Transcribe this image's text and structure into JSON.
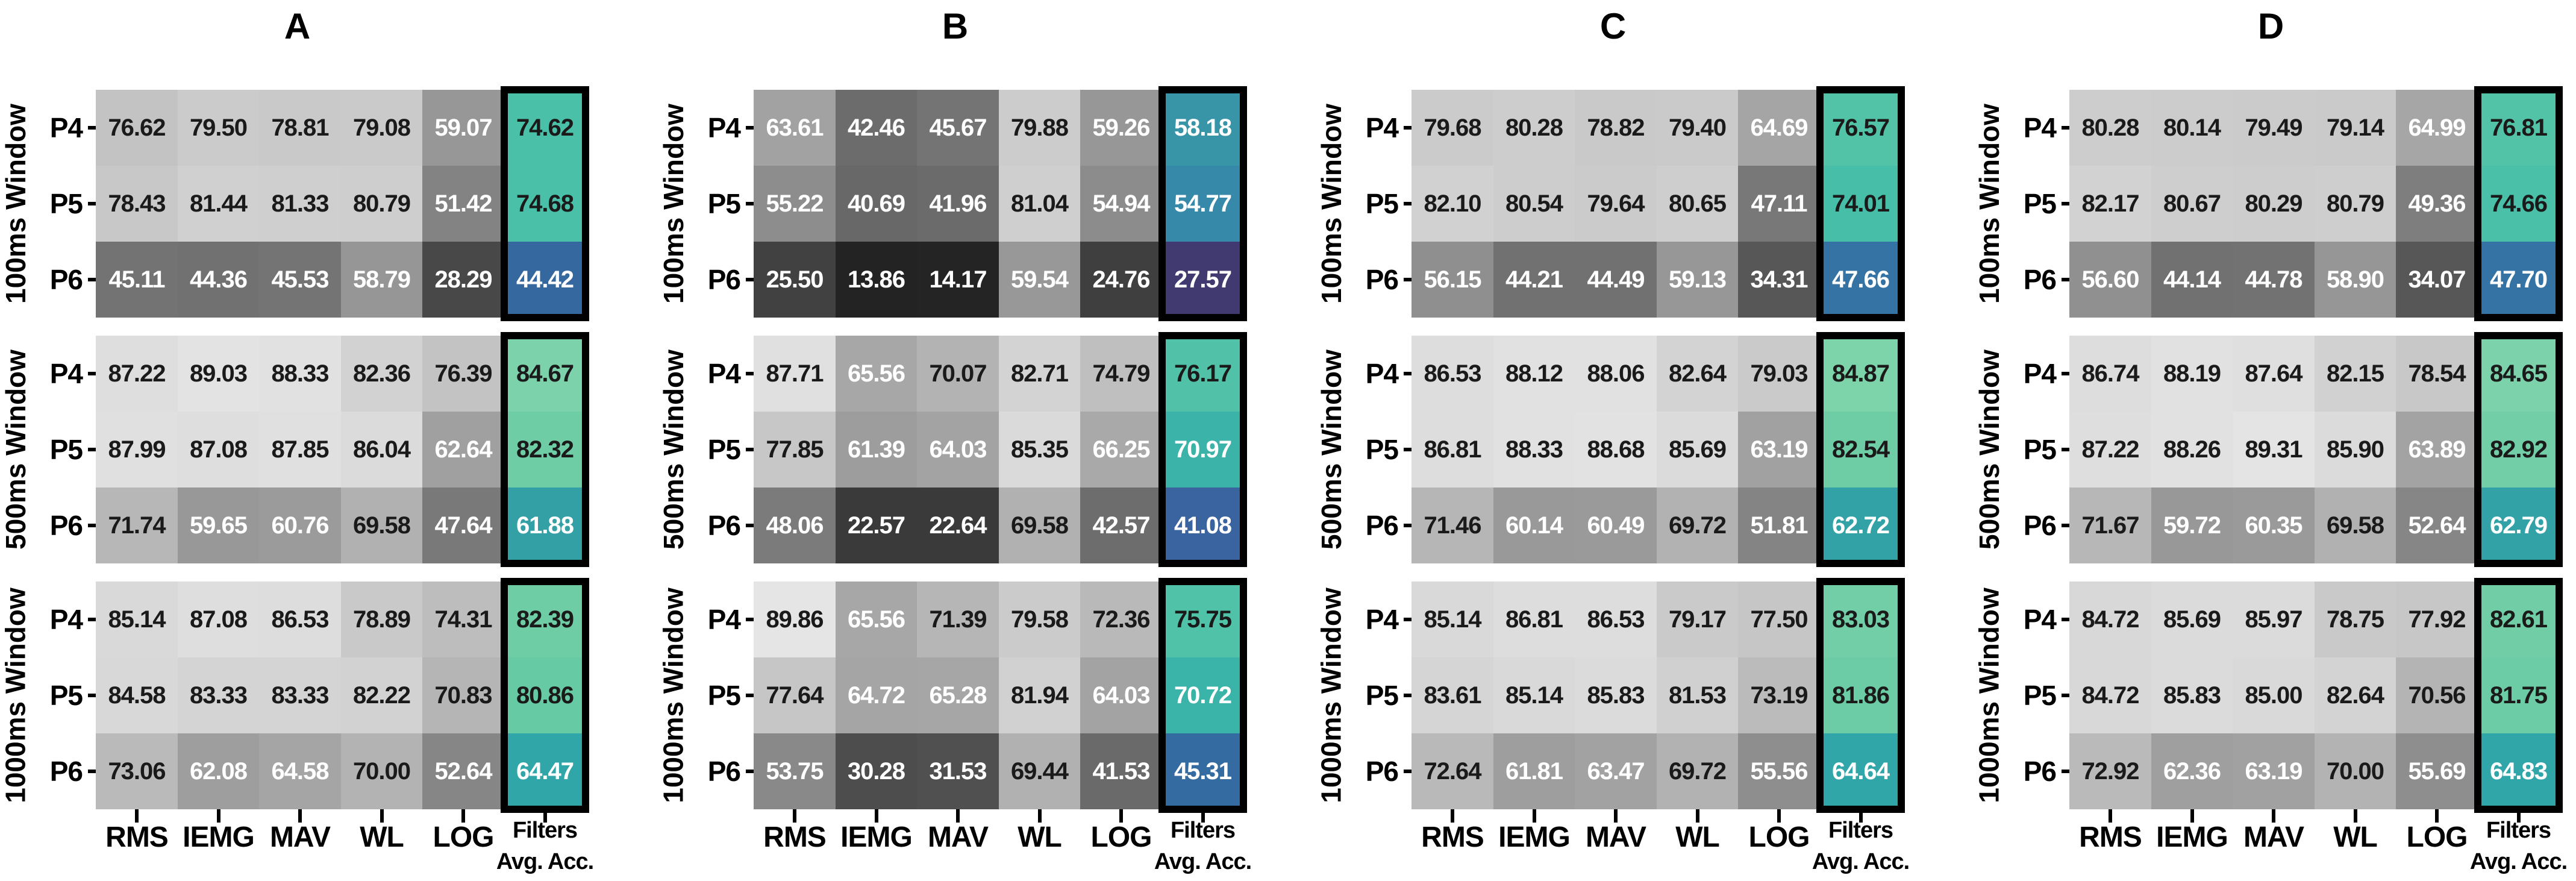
{
  "labels": {
    "panel_titles": [
      "A",
      "B",
      "C",
      "D"
    ],
    "x_axis": [
      "RMS",
      "IEMG",
      "MAV",
      "WL",
      "LOG"
    ],
    "avg_column_line1": "Filters",
    "avg_column_line2": "Avg. Acc.",
    "row_labels": [
      "P4",
      "P5",
      "P6"
    ],
    "window_labels": [
      "100ms Window",
      "500ms Window",
      "1000ms Window"
    ]
  },
  "colors": {
    "background": "#ffffff",
    "cell_text_dark": "#1a1a1a",
    "cell_text_light": "#ffffff",
    "highlight_border": "#000000",
    "gray_vmin": 0,
    "gray_vmax": 100,
    "gray_text_black_min": 68,
    "avg_text_black_min": 72.5,
    "avg_colormap_anchors": [
      [
        27.57,
        "#413a70"
      ],
      [
        41.08,
        "#3a64a0"
      ],
      [
        44.42,
        "#34689f"
      ],
      [
        47.66,
        "#3573a4"
      ],
      [
        54.77,
        "#3689a8"
      ],
      [
        58.18,
        "#3895a8"
      ],
      [
        61.88,
        "#33a0a6"
      ],
      [
        64.64,
        "#31a6a9"
      ],
      [
        70.85,
        "#3ab3a9"
      ],
      [
        74.65,
        "#4ac0a8"
      ],
      [
        76.5,
        "#52c3a7"
      ],
      [
        80.86,
        "#66caa4"
      ],
      [
        82.5,
        "#6fcda5"
      ],
      [
        84.87,
        "#7dd3aa"
      ]
    ]
  },
  "chart_data": [
    {
      "type": "heatmap",
      "title": "A",
      "columns": [
        "RMS",
        "IEMG",
        "MAV",
        "WL",
        "LOG",
        "Filters Avg. Acc."
      ],
      "highlight_column": "Filters Avg. Acc.",
      "value_range": [
        0,
        100
      ],
      "row_groups": [
        {
          "label": "100ms Window",
          "rows": [
            "P4",
            "P5",
            "P6"
          ],
          "values": [
            [
              76.62,
              79.5,
              78.81,
              79.08,
              59.07,
              74.62
            ],
            [
              78.43,
              81.44,
              81.33,
              80.79,
              51.42,
              74.68
            ],
            [
              45.11,
              44.36,
              45.53,
              58.79,
              28.29,
              44.42
            ]
          ]
        },
        {
          "label": "500ms Window",
          "rows": [
            "P4",
            "P5",
            "P6"
          ],
          "values": [
            [
              87.22,
              89.03,
              88.33,
              82.36,
              76.39,
              84.67
            ],
            [
              87.99,
              87.08,
              87.85,
              86.04,
              62.64,
              82.32
            ],
            [
              71.74,
              59.65,
              60.76,
              69.58,
              47.64,
              61.88
            ]
          ]
        },
        {
          "label": "1000ms Window",
          "rows": [
            "P4",
            "P5",
            "P6"
          ],
          "values": [
            [
              85.14,
              87.08,
              86.53,
              78.89,
              74.31,
              82.39
            ],
            [
              84.58,
              83.33,
              83.33,
              82.22,
              70.83,
              80.86
            ],
            [
              73.06,
              62.08,
              64.58,
              70.0,
              52.64,
              64.47
            ]
          ]
        }
      ]
    },
    {
      "type": "heatmap",
      "title": "B",
      "columns": [
        "RMS",
        "IEMG",
        "MAV",
        "WL",
        "LOG",
        "Filters Avg. Acc."
      ],
      "highlight_column": "Filters Avg. Acc.",
      "value_range": [
        0,
        100
      ],
      "row_groups": [
        {
          "label": "100ms Window",
          "rows": [
            "P4",
            "P5",
            "P6"
          ],
          "values": [
            [
              63.61,
              42.46,
              45.67,
              79.88,
              59.26,
              58.18
            ],
            [
              55.22,
              40.69,
              41.96,
              81.04,
              54.94,
              54.77
            ],
            [
              25.5,
              13.86,
              14.17,
              59.54,
              24.76,
              27.57
            ]
          ]
        },
        {
          "label": "500ms Window",
          "rows": [
            "P4",
            "P5",
            "P6"
          ],
          "values": [
            [
              87.71,
              65.56,
              70.07,
              82.71,
              74.79,
              76.17
            ],
            [
              77.85,
              61.39,
              64.03,
              85.35,
              66.25,
              70.97
            ],
            [
              48.06,
              22.57,
              22.64,
              69.58,
              42.57,
              41.08
            ]
          ]
        },
        {
          "label": "1000ms Window",
          "rows": [
            "P4",
            "P5",
            "P6"
          ],
          "values": [
            [
              89.86,
              65.56,
              71.39,
              79.58,
              72.36,
              75.75
            ],
            [
              77.64,
              64.72,
              65.28,
              81.94,
              64.03,
              70.72
            ],
            [
              53.75,
              30.28,
              31.53,
              69.44,
              41.53,
              45.31
            ]
          ]
        }
      ]
    },
    {
      "type": "heatmap",
      "title": "C",
      "columns": [
        "RMS",
        "IEMG",
        "MAV",
        "WL",
        "LOG",
        "Filters Avg. Acc."
      ],
      "highlight_column": "Filters Avg. Acc.",
      "value_range": [
        0,
        100
      ],
      "row_groups": [
        {
          "label": "100ms Window",
          "rows": [
            "P4",
            "P5",
            "P6"
          ],
          "values": [
            [
              79.68,
              80.28,
              78.82,
              79.4,
              64.69,
              76.57
            ],
            [
              82.1,
              80.54,
              79.64,
              80.65,
              47.11,
              74.01
            ],
            [
              56.15,
              44.21,
              44.49,
              59.13,
              34.31,
              47.66
            ]
          ]
        },
        {
          "label": "500ms Window",
          "rows": [
            "P4",
            "P5",
            "P6"
          ],
          "values": [
            [
              86.53,
              88.12,
              88.06,
              82.64,
              79.03,
              84.87
            ],
            [
              86.81,
              88.33,
              88.68,
              85.69,
              63.19,
              82.54
            ],
            [
              71.46,
              60.14,
              60.49,
              69.72,
              51.81,
              62.72
            ]
          ]
        },
        {
          "label": "1000ms Window",
          "rows": [
            "P4",
            "P5",
            "P6"
          ],
          "values": [
            [
              85.14,
              86.81,
              86.53,
              79.17,
              77.5,
              83.03
            ],
            [
              83.61,
              85.14,
              85.83,
              81.53,
              73.19,
              81.86
            ],
            [
              72.64,
              61.81,
              63.47,
              69.72,
              55.56,
              64.64
            ]
          ]
        }
      ]
    },
    {
      "type": "heatmap",
      "title": "D",
      "columns": [
        "RMS",
        "IEMG",
        "MAV",
        "WL",
        "LOG",
        "Filters Avg. Acc."
      ],
      "highlight_column": "Filters Avg. Acc.",
      "value_range": [
        0,
        100
      ],
      "row_groups": [
        {
          "label": "100ms Window",
          "rows": [
            "P4",
            "P5",
            "P6"
          ],
          "values": [
            [
              80.28,
              80.14,
              79.49,
              79.14,
              64.99,
              76.81
            ],
            [
              82.17,
              80.67,
              80.29,
              80.79,
              49.36,
              74.66
            ],
            [
              56.6,
              44.14,
              44.78,
              58.9,
              34.07,
              47.7
            ]
          ]
        },
        {
          "label": "500ms Window",
          "rows": [
            "P4",
            "P5",
            "P6"
          ],
          "values": [
            [
              86.74,
              88.19,
              87.64,
              82.15,
              78.54,
              84.65
            ],
            [
              87.22,
              88.26,
              89.31,
              85.9,
              63.89,
              82.92
            ],
            [
              71.67,
              59.72,
              60.35,
              69.58,
              52.64,
              62.79
            ]
          ]
        },
        {
          "label": "1000ms Window",
          "rows": [
            "P4",
            "P5",
            "P6"
          ],
          "values": [
            [
              84.72,
              85.69,
              85.97,
              78.75,
              77.92,
              82.61
            ],
            [
              84.72,
              85.83,
              85.0,
              82.64,
              70.56,
              81.75
            ],
            [
              72.92,
              62.36,
              63.19,
              70.0,
              55.69,
              64.83
            ]
          ]
        }
      ]
    }
  ]
}
